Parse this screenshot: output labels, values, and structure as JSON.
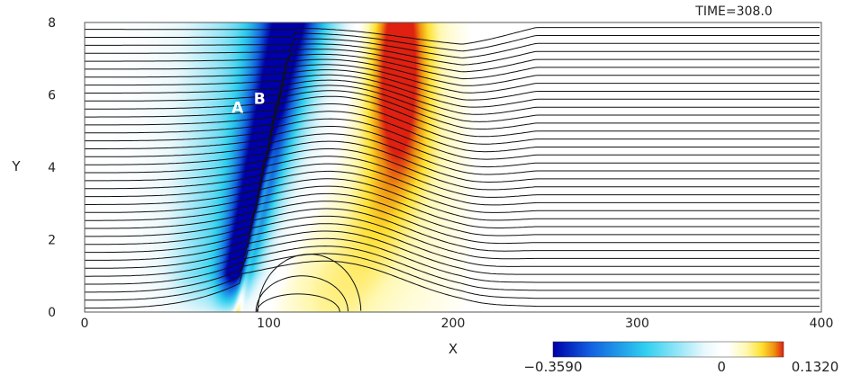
{
  "chart_data": {
    "type": "heatmap",
    "title": "TIME=308.0",
    "xlabel": "X",
    "ylabel": "Y",
    "xlim": [
      0,
      400
    ],
    "ylim": [
      0,
      8
    ],
    "x_ticks": [
      0,
      100,
      200,
      300,
      400
    ],
    "y_ticks": [
      0,
      2,
      4,
      6,
      8
    ],
    "x_tick_labels": [
      "0",
      "100",
      "200",
      "300",
      "400"
    ],
    "y_tick_labels": [
      "0",
      "2",
      "4",
      "6",
      "8"
    ],
    "colorbar": {
      "min": -0.359,
      "mid": 0,
      "max": 0.132,
      "min_label": "−0.3590",
      "mid_label": "0",
      "max_label": "0.1320",
      "colors": [
        "#0000a8",
        "#1060e0",
        "#30d0f0",
        "#e8f8fc",
        "#ffffff",
        "#fff8b0",
        "#ffe030",
        "#f09010",
        "#e02010",
        "#c00000"
      ]
    },
    "annotations": [
      {
        "text": "A",
        "x": 83,
        "y": 5.5
      },
      {
        "text": "B",
        "x": 95,
        "y": 5.75
      }
    ],
    "contour_lines": true,
    "grid": false
  }
}
